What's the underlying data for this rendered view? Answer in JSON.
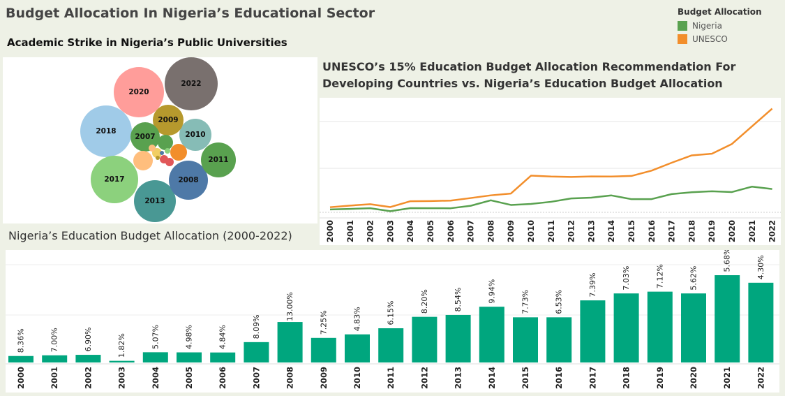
{
  "header": {
    "title": "Budget Allocation In Nigeria’s Educational Sector"
  },
  "legend": {
    "title": "Budget Allocation",
    "items": [
      {
        "label": "Nigeria",
        "color": "#59a14f"
      },
      {
        "label": "UNESCO",
        "color": "#f28e2b"
      }
    ]
  },
  "chart_data": [
    {
      "type": "bubble",
      "title": "Academic Strike in Nigeria’s Public Universities",
      "bubbles": [
        {
          "label": "2022",
          "size": 38,
          "color": "#79706e"
        },
        {
          "label": "2020",
          "size": 36,
          "color": "#ff9d9a"
        },
        {
          "label": "2018",
          "size": 37,
          "color": "#a0cbe8"
        },
        {
          "label": "2017",
          "size": 34,
          "color": "#8cd17d"
        },
        {
          "label": "2013",
          "size": 30,
          "color": "#499894"
        },
        {
          "label": "2008",
          "size": 28,
          "color": "#4e79a7"
        },
        {
          "label": "2011",
          "size": 25,
          "color": "#59a14f"
        },
        {
          "label": "2010",
          "size": 23,
          "color": "#86bcb6"
        },
        {
          "label": "2009",
          "size": 22,
          "color": "#b6992d"
        },
        {
          "label": "2007",
          "size": 21,
          "color": "#59a14f"
        },
        {
          "label": "",
          "size": 14,
          "color": "#ffbe7d"
        },
        {
          "label": "",
          "size": 12,
          "color": "#f28e2b"
        },
        {
          "label": "",
          "size": 11,
          "color": "#59a14f"
        },
        {
          "label": "",
          "size": 7,
          "color": "#f1ce63"
        },
        {
          "label": "",
          "size": 6,
          "color": "#e15759"
        },
        {
          "label": "",
          "size": 6,
          "color": "#e15759"
        },
        {
          "label": "",
          "size": 5,
          "color": "#ffbe7d"
        },
        {
          "label": "",
          "size": 4,
          "color": "#8cd17d"
        },
        {
          "label": "",
          "size": 3,
          "color": "#4e79a7"
        },
        {
          "label": "",
          "size": 3,
          "color": "#b6992d"
        }
      ]
    },
    {
      "type": "line",
      "title": "UNESCO’s 15% Education Budget Allocation Recommendation For Developing Countries vs. Nigeria’s Education Budget Allocation",
      "x": [
        "2000",
        "2001",
        "2002",
        "2003",
        "2004",
        "2005",
        "2006",
        "2007",
        "2008",
        "2009",
        "2010",
        "2011",
        "2012",
        "2013",
        "2014",
        "2015",
        "2016",
        "2017",
        "2018",
        "2019",
        "2020",
        "2021",
        "2022"
      ],
      "series": [
        {
          "name": "Nigeria",
          "color": "#59a14f",
          "values": [
            38,
            45,
            55,
            15,
            56,
            55,
            54,
            87,
            160,
            98,
            112,
            140,
            185,
            195,
            225,
            175,
            176,
            243,
            267,
            280,
            270,
            342,
            310
          ]
        },
        {
          "name": "UNESCO",
          "color": "#f28e2b",
          "values": [
            68,
            90,
            108,
            70,
            148,
            150,
            156,
            190,
            226,
            250,
            488,
            476,
            471,
            478,
            476,
            484,
            555,
            660,
            758,
            780,
            910,
            1145,
            1380
          ]
        }
      ],
      "ylim": [
        0,
        1450
      ],
      "grid": true
    },
    {
      "type": "bar",
      "title": "Nigeria’s Education Budget Allocation (2000-2022)",
      "categories": [
        "2000",
        "2001",
        "2002",
        "2003",
        "2004",
        "2005",
        "2006",
        "2007",
        "2008",
        "2009",
        "2010",
        "2011",
        "2012",
        "2013",
        "2014",
        "2015",
        "2016",
        "2017",
        "2018",
        "2019",
        "2020",
        "2021",
        "2022"
      ],
      "values": [
        55,
        61,
        65,
        14,
        87,
        86,
        85,
        173,
        344,
        209,
        239,
        291,
        388,
        404,
        474,
        384,
        384,
        528,
        587,
        602,
        587,
        742,
        678
      ],
      "data_labels": [
        "8.36%",
        "7.00%",
        "6.90%",
        "1.82%",
        "5.07%",
        "4.98%",
        "4.84%",
        "8.09%",
        "13.00%",
        "7.25%",
        "4.83%",
        "6.15%",
        "8.20%",
        "8.54%",
        "9.94%",
        "7.73%",
        "6.53%",
        "7.39%",
        "7.03%",
        "7.12%",
        "5.62%",
        "5.68%",
        "4.30%"
      ],
      "color": "#00a67e",
      "ylim": [
        0,
        950
      ],
      "grid": true
    }
  ]
}
